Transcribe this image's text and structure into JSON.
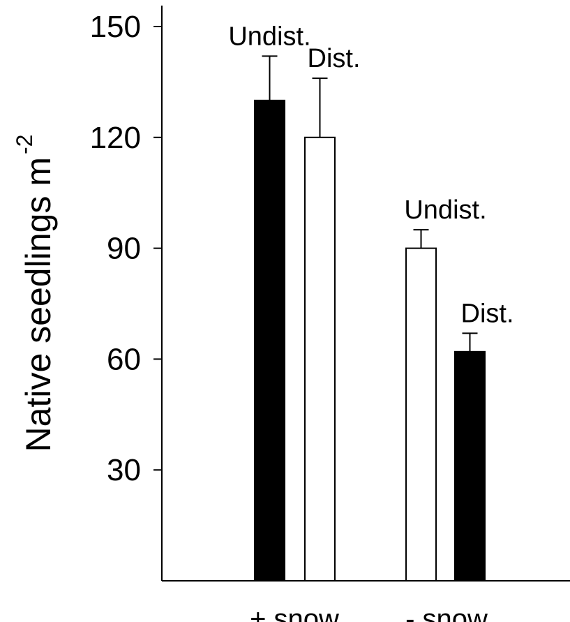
{
  "chart_data": {
    "type": "bar",
    "ylabel": "Native seedlings m",
    "ylabel_superscript": "-2",
    "ylim": [
      0,
      156
    ],
    "yticks": [
      30,
      60,
      90,
      120,
      150
    ],
    "grid": false,
    "categories": [
      "+ snow",
      "- snow"
    ],
    "bars": [
      {
        "category": "+ snow",
        "label": "Undist.",
        "value": 130,
        "error": 12,
        "fill": "#000000"
      },
      {
        "category": "+ snow",
        "label": "Dist.",
        "value": 120,
        "error": 16,
        "fill": "#ffffff"
      },
      {
        "category": "- snow",
        "label": "Undist.",
        "value": 90,
        "error": 5,
        "fill": "#ffffff"
      },
      {
        "category": "- snow",
        "label": "Dist.",
        "value": 62,
        "error": 5,
        "fill": "#000000"
      }
    ]
  }
}
